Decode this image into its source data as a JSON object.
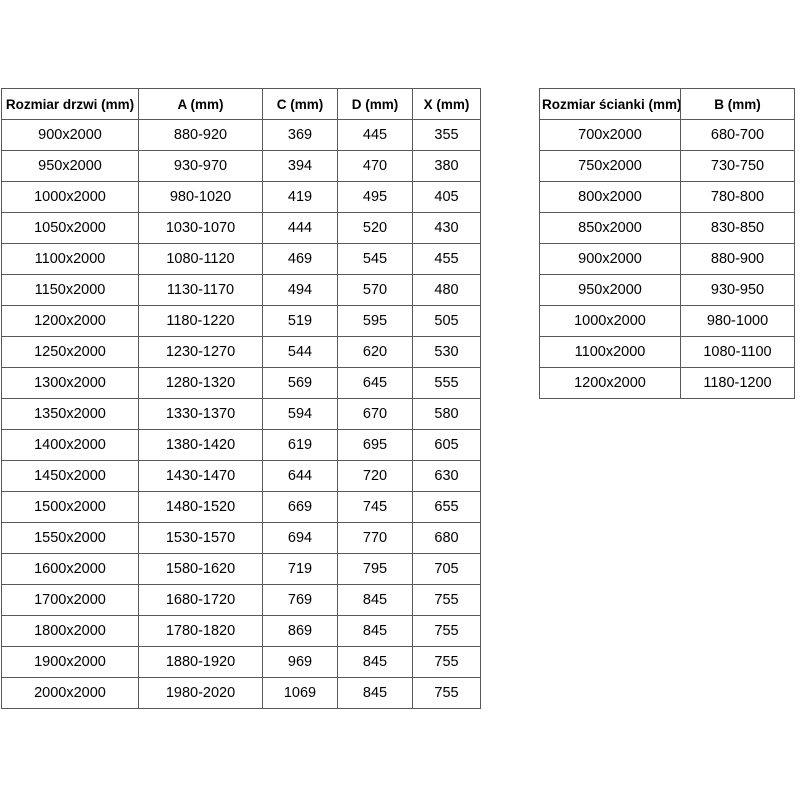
{
  "page": {
    "background_color": "#ffffff",
    "border_color": "#595959",
    "text_color": "#000000"
  },
  "tables": [
    {
      "name": "door-sizes",
      "headers": [
        "Rozmiar drzwi (mm)",
        "A (mm)",
        "C (mm)",
        "D (mm)",
        "X (mm)"
      ],
      "rows": [
        [
          "900x2000",
          "880-920",
          "369",
          "445",
          "355"
        ],
        [
          "950x2000",
          "930-970",
          "394",
          "470",
          "380"
        ],
        [
          "1000x2000",
          "980-1020",
          "419",
          "495",
          "405"
        ],
        [
          "1050x2000",
          "1030-1070",
          "444",
          "520",
          "430"
        ],
        [
          "1100x2000",
          "1080-1120",
          "469",
          "545",
          "455"
        ],
        [
          "1150x2000",
          "1130-1170",
          "494",
          "570",
          "480"
        ],
        [
          "1200x2000",
          "1180-1220",
          "519",
          "595",
          "505"
        ],
        [
          "1250x2000",
          "1230-1270",
          "544",
          "620",
          "530"
        ],
        [
          "1300x2000",
          "1280-1320",
          "569",
          "645",
          "555"
        ],
        [
          "1350x2000",
          "1330-1370",
          "594",
          "670",
          "580"
        ],
        [
          "1400x2000",
          "1380-1420",
          "619",
          "695",
          "605"
        ],
        [
          "1450x2000",
          "1430-1470",
          "644",
          "720",
          "630"
        ],
        [
          "1500x2000",
          "1480-1520",
          "669",
          "745",
          "655"
        ],
        [
          "1550x2000",
          "1530-1570",
          "694",
          "770",
          "680"
        ],
        [
          "1600x2000",
          "1580-1620",
          "719",
          "795",
          "705"
        ],
        [
          "1700x2000",
          "1680-1720",
          "769",
          "845",
          "755"
        ],
        [
          "1800x2000",
          "1780-1820",
          "869",
          "845",
          "755"
        ],
        [
          "1900x2000",
          "1880-1920",
          "969",
          "845",
          "755"
        ],
        [
          "2000x2000",
          "1980-2020",
          "1069",
          "845",
          "755"
        ]
      ]
    },
    {
      "name": "wall-sizes",
      "headers": [
        "Rozmiar ścianki (mm)",
        "B (mm)"
      ],
      "rows": [
        [
          "700x2000",
          "680-700"
        ],
        [
          "750x2000",
          "730-750"
        ],
        [
          "800x2000",
          "780-800"
        ],
        [
          "850x2000",
          "830-850"
        ],
        [
          "900x2000",
          "880-900"
        ],
        [
          "950x2000",
          "930-950"
        ],
        [
          "1000x2000",
          "980-1000"
        ],
        [
          "1100x2000",
          "1080-1100"
        ],
        [
          "1200x2000",
          "1180-1200"
        ]
      ]
    }
  ]
}
